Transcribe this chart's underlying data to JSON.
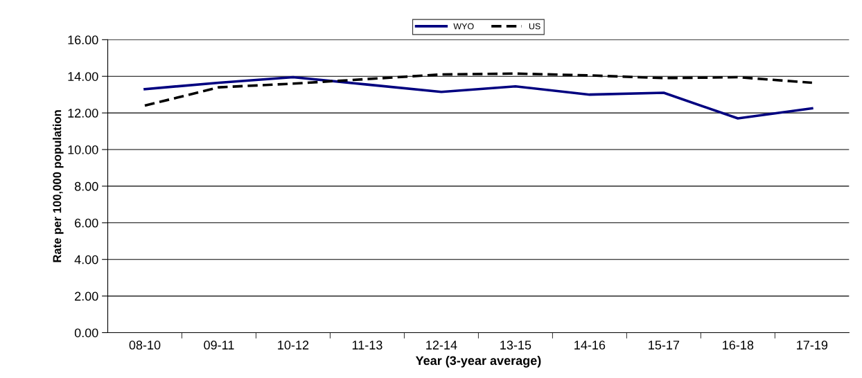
{
  "chart_data": {
    "type": "line",
    "xlabel": "Year (3-year average)",
    "ylabel": "Rate per 100,000 population",
    "categories": [
      "08-10",
      "09-11",
      "10-12",
      "11-13",
      "12-14",
      "13-15",
      "14-16",
      "15-17",
      "16-18",
      "17-19"
    ],
    "series": [
      {
        "name": "WYO",
        "color": "#000080",
        "line_style": "solid",
        "values": [
          13.3,
          13.65,
          13.95,
          13.55,
          13.15,
          13.45,
          13.0,
          13.1,
          11.7,
          12.25
        ]
      },
      {
        "name": "US",
        "color": "#000000",
        "line_style": "dashed",
        "values": [
          12.4,
          13.4,
          13.6,
          13.85,
          14.1,
          14.15,
          14.05,
          13.9,
          13.95,
          13.65
        ]
      }
    ],
    "ylim": [
      0,
      16
    ],
    "yticks": [
      {
        "value": 0,
        "label": "0.00"
      },
      {
        "value": 2,
        "label": "2.00"
      },
      {
        "value": 4,
        "label": "4.00"
      },
      {
        "value": 6,
        "label": "6.00"
      },
      {
        "value": 8,
        "label": "8.00"
      },
      {
        "value": 10,
        "label": "10.00"
      },
      {
        "value": 12,
        "label": "12.00"
      },
      {
        "value": 14,
        "label": "14.00"
      },
      {
        "value": 16,
        "label": "16.00"
      }
    ],
    "grid": "y",
    "legend": "top",
    "marker": "none"
  }
}
